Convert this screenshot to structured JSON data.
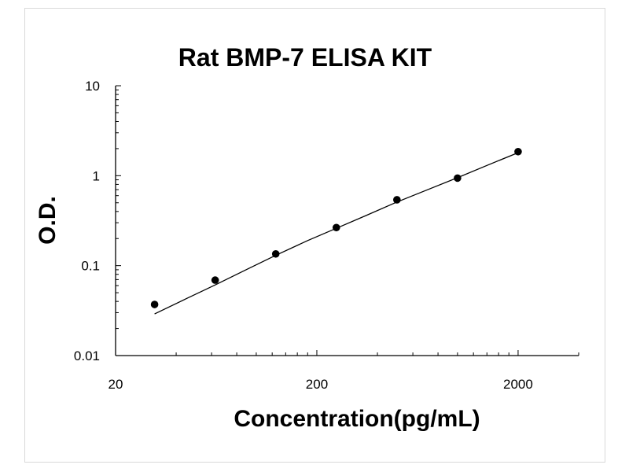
{
  "chart_data": {
    "type": "scatter",
    "title": "Rat BMP-7 ELISA KIT",
    "xlabel": "Concentration(pg/mL)",
    "ylabel": "O.D.",
    "x_scale": "log",
    "y_scale": "log",
    "xlim": [
      20,
      4000
    ],
    "ylim": [
      0.01,
      10
    ],
    "x_ticks": [
      {
        "value": 20,
        "label": "20"
      },
      {
        "value": 200,
        "label": "200"
      },
      {
        "value": 2000,
        "label": "2000"
      }
    ],
    "y_ticks": [
      {
        "value": 0.01,
        "label": "0.01"
      },
      {
        "value": 0.1,
        "label": "0.1"
      },
      {
        "value": 1,
        "label": "1"
      },
      {
        "value": 10,
        "label": "10"
      }
    ],
    "grid": false,
    "legend": "none",
    "series": [
      {
        "points": {
          "x": [
            31.25,
            62.5,
            125,
            250,
            500,
            1000,
            2000
          ],
          "y": [
            0.037,
            0.069,
            0.135,
            0.265,
            0.54,
            0.94,
            1.85
          ]
        },
        "fit_curve": {
          "x": [
            31.25,
            45,
            62.5,
            90,
            125,
            180,
            250,
            350,
            500,
            700,
            1000,
            1400,
            2000
          ],
          "y": [
            0.029,
            0.043,
            0.061,
            0.091,
            0.13,
            0.19,
            0.26,
            0.36,
            0.51,
            0.69,
            0.95,
            1.3,
            1.8
          ]
        }
      }
    ],
    "colors": {
      "marker": "#000000",
      "line": "#000000",
      "axis": "#000000",
      "frame": "#d9d9d9"
    }
  }
}
